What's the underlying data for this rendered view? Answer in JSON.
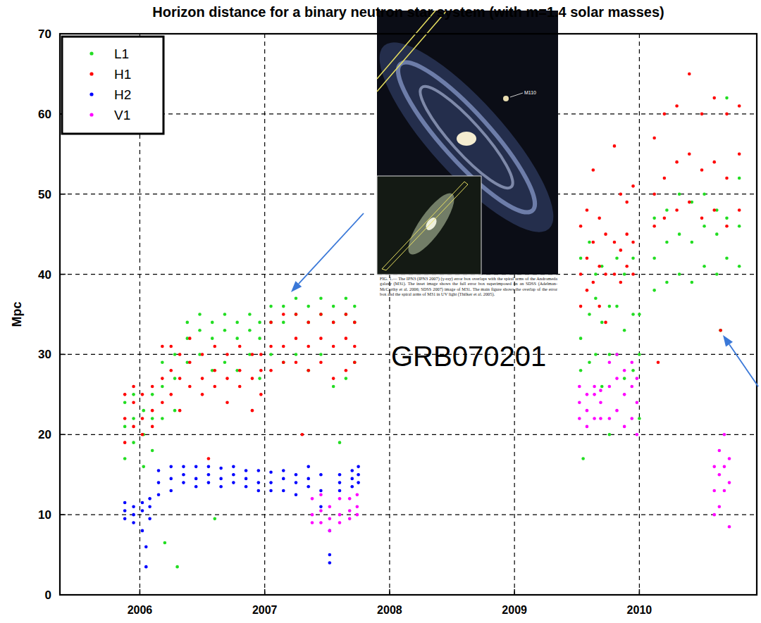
{
  "chart_data": {
    "type": "scatter",
    "title": "Horizon distance for a binary neutron star system (with m=1.4 solar masses)",
    "y_label": "Mpc",
    "annotation": "GRB070201",
    "inset_label": "M110",
    "inset_caption": "FIG. 1.— The IPN3 (IPN3 2007) (γ-ray) error box overlaps with the spiral arms of the Andromeda galaxy (M31). The inset image shows the full error box superimposed on an SDSS (Adelman-McCarthy et al. 2006; SDSS 2007) image of M31. The main figure shows the overlap of the error box and the spiral arms of M31 in UV light (Thilker et al. 2005).",
    "xlim": [
      2005.36,
      2010.94
    ],
    "ylim": [
      0,
      70
    ],
    "xticks": [
      2006,
      2007,
      2008,
      2009,
      2010
    ],
    "yticks": [
      0,
      10,
      20,
      30,
      40,
      50,
      60,
      70
    ],
    "grid": true,
    "legend": "upper left",
    "marker": "dot",
    "series": [
      {
        "name": "L1",
        "color": "#22dd22",
        "x": [
          2005.88,
          2005.88,
          2005.88,
          2005.95,
          2005.95,
          2005.95,
          2006.03,
          2006.03,
          2006.03,
          2006.1,
          2006.1,
          2006.1,
          2006.18,
          2006.18,
          2006.18,
          2006.2,
          2006.28,
          2006.28,
          2006.28,
          2006.3,
          2006.38,
          2006.38,
          2006.38,
          2006.48,
          2006.48,
          2006.48,
          2006.58,
          2006.58,
          2006.58,
          2006.6,
          2006.68,
          2006.68,
          2006.68,
          2006.78,
          2006.78,
          2006.78,
          2006.88,
          2006.88,
          2006.88,
          2006.96,
          2006.96,
          2006.96,
          2007.05,
          2007.05,
          2007.05,
          2007.15,
          2007.15,
          2007.15,
          2007.25,
          2007.25,
          2007.25,
          2007.35,
          2007.35,
          2007.35,
          2007.45,
          2007.45,
          2007.45,
          2007.55,
          2007.55,
          2007.55,
          2007.6,
          2007.65,
          2007.65,
          2007.65,
          2007.72,
          2007.72,
          2007.72,
          2009.53,
          2009.53,
          2009.53,
          2009.55,
          2009.6,
          2009.6,
          2009.6,
          2009.65,
          2009.65,
          2009.65,
          2009.7,
          2009.7,
          2009.7,
          2009.76,
          2009.76,
          2009.76,
          2009.82,
          2009.82,
          2009.82,
          2009.88,
          2009.88,
          2009.88,
          2009.95,
          2009.95,
          2009.95,
          2010.0,
          2010.0,
          2010.0,
          2010.12,
          2010.12,
          2010.12,
          2010.22,
          2010.22,
          2010.22,
          2010.32,
          2010.32,
          2010.32,
          2010.42,
          2010.42,
          2010.42,
          2010.52,
          2010.52,
          2010.52,
          2010.62,
          2010.62,
          2010.62,
          2010.65,
          2010.7,
          2010.7,
          2010.7,
          2010.8,
          2010.8,
          2010.8
        ],
        "values": [
          21,
          24,
          17,
          22,
          19,
          25,
          20,
          23,
          16,
          22,
          25,
          18,
          26,
          29,
          22,
          6.5,
          27,
          30,
          23,
          3.5,
          32,
          34,
          29,
          33,
          35,
          30,
          32,
          34,
          28,
          9.5,
          33,
          35,
          29,
          32,
          34,
          28,
          33,
          35,
          30,
          32,
          34,
          27,
          34,
          36,
          30,
          34,
          36,
          29,
          35,
          37,
          30,
          34,
          36,
          28,
          35,
          37,
          30,
          34,
          36,
          26,
          19,
          35,
          37,
          27,
          34,
          36,
          29,
          32,
          42,
          28,
          17,
          35,
          44,
          29,
          37,
          40,
          30,
          34,
          41,
          26,
          30,
          36,
          20,
          36,
          42,
          30,
          33,
          40,
          27,
          35,
          42,
          28,
          30,
          35,
          22,
          42,
          47,
          38,
          44,
          48,
          39,
          45,
          50,
          40,
          44,
          49,
          39,
          46,
          50,
          41,
          45,
          48,
          40,
          33,
          47,
          62,
          42,
          46,
          52,
          41
        ]
      },
      {
        "name": "H1",
        "color": "#ff0000",
        "x": [
          2005.88,
          2005.88,
          2005.88,
          2005.95,
          2005.95,
          2005.95,
          2006.02,
          2006.02,
          2006.02,
          2006.1,
          2006.1,
          2006.1,
          2006.18,
          2006.18,
          2006.18,
          2006.25,
          2006.25,
          2006.25,
          2006.32,
          2006.32,
          2006.32,
          2006.4,
          2006.4,
          2006.4,
          2006.5,
          2006.5,
          2006.5,
          2006.55,
          2006.6,
          2006.6,
          2006.6,
          2006.7,
          2006.7,
          2006.7,
          2006.8,
          2006.8,
          2006.8,
          2006.9,
          2006.9,
          2006.9,
          2006.97,
          2006.97,
          2006.97,
          2007.05,
          2007.05,
          2007.05,
          2007.15,
          2007.15,
          2007.15,
          2007.25,
          2007.25,
          2007.25,
          2007.3,
          2007.35,
          2007.35,
          2007.35,
          2007.45,
          2007.45,
          2007.45,
          2007.55,
          2007.55,
          2007.55,
          2007.65,
          2007.65,
          2007.65,
          2007.72,
          2007.72,
          2007.72,
          2009.53,
          2009.53,
          2009.53,
          2009.58,
          2009.58,
          2009.58,
          2009.63,
          2009.63,
          2009.63,
          2009.68,
          2009.68,
          2009.68,
          2009.73,
          2009.73,
          2009.73,
          2009.8,
          2009.8,
          2009.8,
          2009.85,
          2009.85,
          2009.85,
          2009.9,
          2009.9,
          2009.9,
          2009.95,
          2009.95,
          2009.95,
          2010.12,
          2010.12,
          2010.12,
          2010.15,
          2010.2,
          2010.2,
          2010.2,
          2010.3,
          2010.3,
          2010.3,
          2010.4,
          2010.4,
          2010.4,
          2010.5,
          2010.5,
          2010.5,
          2010.6,
          2010.6,
          2010.6,
          2010.65,
          2010.7,
          2010.7,
          2010.7,
          2010.8,
          2010.8,
          2010.8
        ],
        "values": [
          22,
          25,
          19,
          24,
          21,
          26,
          22,
          25,
          20,
          23,
          26,
          21,
          27,
          31,
          24,
          28,
          31,
          25,
          27,
          30,
          23,
          29,
          32,
          26,
          27,
          30,
          25,
          17,
          28,
          31,
          26,
          27,
          30,
          24,
          28,
          31,
          26,
          27,
          30,
          23,
          28,
          25,
          30,
          31,
          34,
          28,
          31,
          35,
          29,
          32,
          35,
          29,
          20,
          31,
          34,
          28,
          32,
          35,
          29,
          31,
          34,
          27,
          32,
          35,
          28,
          31,
          34,
          29,
          40,
          46,
          36,
          42,
          48,
          38,
          44,
          53,
          39,
          41,
          47,
          36,
          40,
          45,
          34,
          44,
          56,
          40,
          43,
          50,
          39,
          45,
          49,
          41,
          44,
          51,
          40,
          50,
          57,
          46,
          29,
          52,
          60,
          47,
          54,
          61,
          48,
          55,
          65,
          49,
          53,
          60,
          47,
          54,
          62,
          48,
          33,
          52,
          60,
          46,
          55,
          61,
          48
        ]
      },
      {
        "name": "H2",
        "color": "#0000ff",
        "x": [
          2005.88,
          2005.88,
          2005.88,
          2005.95,
          2005.95,
          2005.95,
          2006.02,
          2006.02,
          2006.02,
          2006.05,
          2006.05,
          2006.08,
          2006.08,
          2006.08,
          2006.15,
          2006.15,
          2006.15,
          2006.25,
          2006.25,
          2006.25,
          2006.35,
          2006.35,
          2006.35,
          2006.45,
          2006.45,
          2006.45,
          2006.55,
          2006.55,
          2006.55,
          2006.65,
          2006.65,
          2006.65,
          2006.75,
          2006.75,
          2006.75,
          2006.85,
          2006.85,
          2006.85,
          2006.95,
          2006.95,
          2006.95,
          2007.05,
          2007.05,
          2007.05,
          2007.15,
          2007.15,
          2007.15,
          2007.25,
          2007.25,
          2007.25,
          2007.35,
          2007.35,
          2007.35,
          2007.45,
          2007.45,
          2007.45,
          2007.52,
          2007.52,
          2007.52,
          2007.6,
          2007.6,
          2007.6,
          2007.7,
          2007.7,
          2007.7,
          2007.75,
          2007.75,
          2007.75
        ],
        "values": [
          10.5,
          11.5,
          9.5,
          10,
          11,
          9,
          10.5,
          11.5,
          8,
          3.5,
          6,
          11,
          12,
          9.5,
          14,
          15.5,
          12.5,
          14.5,
          16,
          13,
          15,
          16,
          14,
          14.5,
          16,
          13.5,
          15,
          16,
          14,
          14.5,
          15.8,
          13.5,
          15,
          16,
          14,
          14.5,
          15.5,
          13.5,
          14,
          15.5,
          13,
          14,
          15.3,
          13,
          14.5,
          15.5,
          13,
          14,
          15,
          12.5,
          14.5,
          16,
          13.5,
          13,
          15,
          11,
          5,
          4,
          8,
          14,
          15,
          13,
          14.5,
          15.5,
          13.5,
          15,
          16,
          14
        ]
      },
      {
        "name": "V1",
        "color": "#ff00ff",
        "x": [
          2007.38,
          2007.38,
          2007.38,
          2007.45,
          2007.45,
          2007.45,
          2007.52,
          2007.52,
          2007.52,
          2007.6,
          2007.6,
          2007.6,
          2007.68,
          2007.68,
          2007.68,
          2007.74,
          2007.74,
          2007.74,
          2009.52,
          2009.52,
          2009.52,
          2009.58,
          2009.58,
          2009.58,
          2009.64,
          2009.64,
          2009.64,
          2009.69,
          2009.69,
          2009.69,
          2009.76,
          2009.76,
          2009.76,
          2009.82,
          2009.82,
          2009.82,
          2009.88,
          2009.88,
          2009.88,
          2009.94,
          2009.94,
          2009.94,
          2009.98,
          2009.98,
          2009.98,
          2010.6,
          2010.6,
          2010.6,
          2010.64,
          2010.64,
          2010.64,
          2010.68,
          2010.68,
          2010.68,
          2010.72,
          2010.72,
          2010.72
        ],
        "values": [
          10,
          12,
          9,
          10.5,
          12.5,
          9,
          9.5,
          11,
          8,
          10,
          12,
          9,
          10.5,
          12,
          9.5,
          11,
          12.5,
          10,
          24,
          26,
          22,
          23,
          25,
          21,
          25,
          26,
          22,
          24,
          25.5,
          22,
          26,
          29,
          22,
          27,
          30,
          23,
          25,
          28,
          21,
          26,
          29,
          22,
          24,
          27,
          20,
          13,
          16,
          10,
          15,
          18,
          11,
          16,
          20,
          13,
          14,
          17,
          8.5
        ]
      }
    ]
  }
}
